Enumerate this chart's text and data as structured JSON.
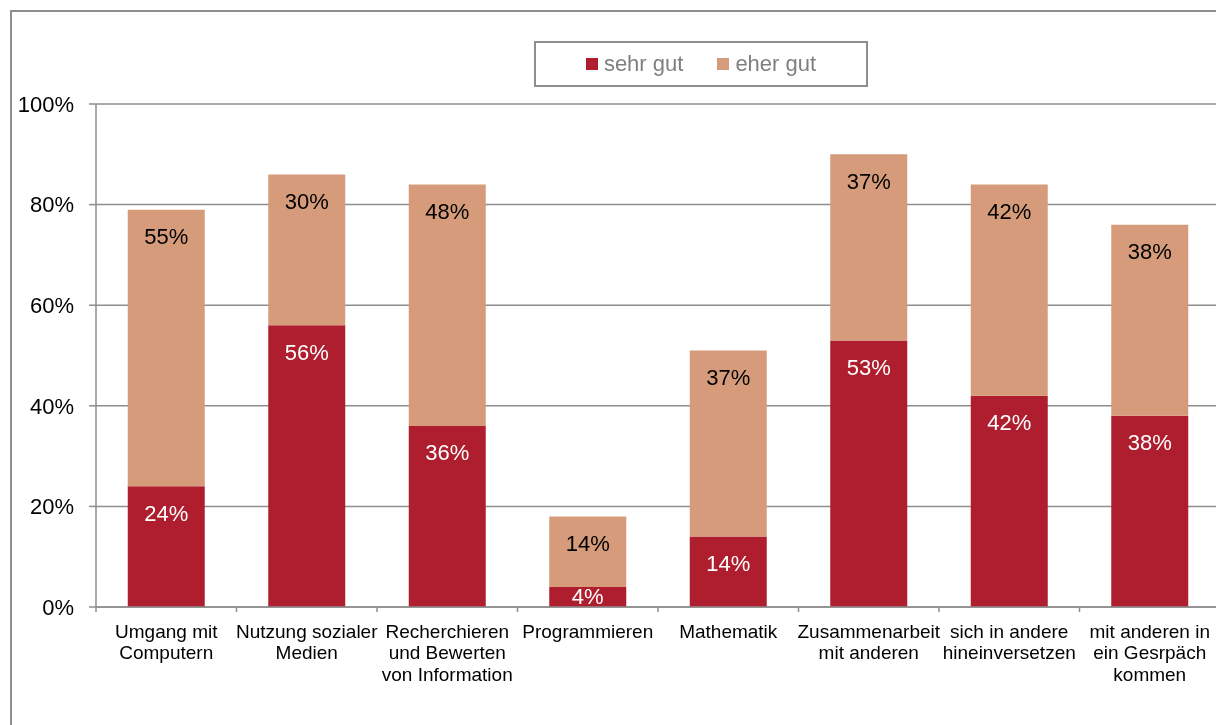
{
  "chart_data": {
    "type": "bar",
    "stacked": true,
    "categories": [
      "Umgang mit Computern",
      "Nutzung sozialer Medien",
      "Recherchieren und Bewerten von Information",
      "Programmieren",
      "Mathematik",
      "Zusammenarbeit mit anderen",
      "sich in andere hineinversetzen",
      "mit anderen in ein Gesrpäch kommen"
    ],
    "series": [
      {
        "name": "sehr gut",
        "color": "#ae1e2e",
        "values": [
          24,
          56,
          36,
          4,
          14,
          53,
          42,
          38
        ],
        "value_labels": [
          "24%",
          "56%",
          "36%",
          "4%",
          "14%",
          "53%",
          "42%",
          "38%"
        ]
      },
      {
        "name": "eher gut",
        "color": "#d69b7a",
        "values": [
          55,
          30,
          48,
          14,
          37,
          37,
          42,
          38
        ],
        "value_labels": [
          "55%",
          "30%",
          "48%",
          "14%",
          "37%",
          "37%",
          "42%",
          "38%"
        ]
      }
    ],
    "ylim": [
      0,
      100
    ],
    "yticks": [
      {
        "value": 0,
        "label": "0%"
      },
      {
        "value": 20,
        "label": "20%"
      },
      {
        "value": 40,
        "label": "40%"
      },
      {
        "value": 60,
        "label": "60%"
      },
      {
        "value": 80,
        "label": "80%"
      },
      {
        "value": 100,
        "label": "100%"
      }
    ],
    "grid": "y",
    "legend": "top"
  }
}
